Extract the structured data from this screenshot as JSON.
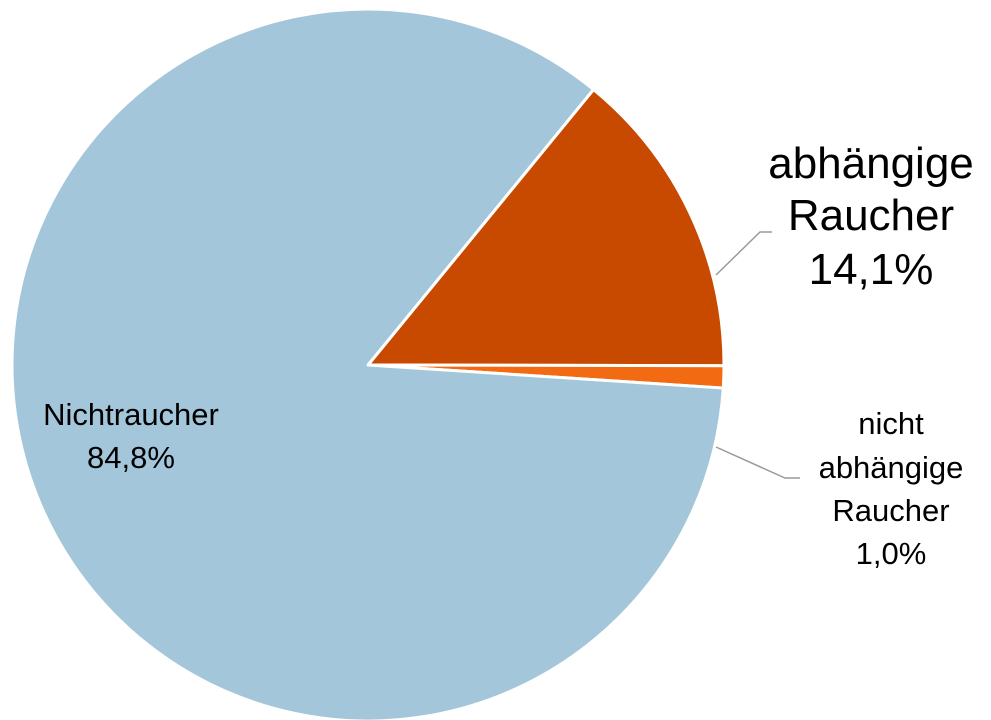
{
  "chart_data": {
    "type": "pie",
    "title": "",
    "slices": [
      {
        "label_lines": [
          "abhängige",
          "Raucher"
        ],
        "value": 14.1,
        "value_label": "14,1%",
        "color": "#c84a00"
      },
      {
        "label_lines": [
          "nicht",
          "abhängige",
          "Raucher"
        ],
        "value": 1.0,
        "value_label": "1,0%",
        "color": "#f26a12"
      },
      {
        "label_lines": [
          "Nichtraucher"
        ],
        "value": 84.8,
        "value_label": "84,8%",
        "color": "#a3c6da"
      }
    ],
    "legend": "none"
  }
}
